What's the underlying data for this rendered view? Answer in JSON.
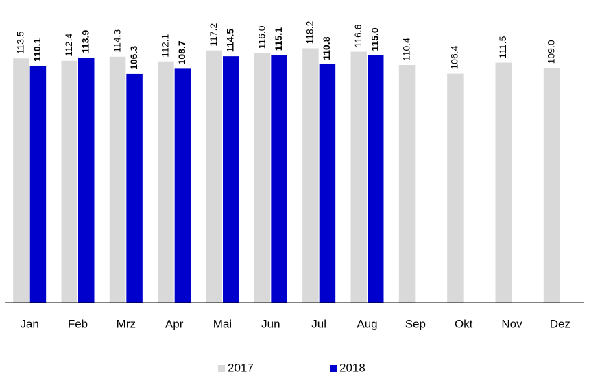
{
  "chart_data": {
    "type": "bar",
    "categories": [
      "Jan",
      "Feb",
      "Mrz",
      "Apr",
      "Mai",
      "Jun",
      "Jul",
      "Aug",
      "Sep",
      "Okt",
      "Nov",
      "Dez"
    ],
    "series": [
      {
        "name": "2017",
        "color": "#d9d9d9",
        "values": [
          113.5,
          112.4,
          114.3,
          112.1,
          117.2,
          116.0,
          118.2,
          116.6,
          110.4,
          106.4,
          111.5,
          109.0
        ],
        "value_labels": [
          "113.5",
          "112.4",
          "114.3",
          "112.1",
          "117.2",
          "116.0",
          "118.2",
          "116.6",
          "110.4",
          "106.4",
          "111.5",
          "109.0"
        ]
      },
      {
        "name": "2018",
        "color": "#0000cc",
        "values": [
          110.1,
          113.9,
          106.3,
          108.7,
          114.5,
          115.1,
          110.8,
          115.0,
          null,
          null,
          null,
          null
        ],
        "value_labels": [
          "110.1",
          "113.9",
          "106.3",
          "108.7",
          "114.5",
          "115.1",
          "110.8",
          "115.0",
          null,
          null,
          null,
          null
        ]
      }
    ],
    "ylim": [
      0,
      140
    ],
    "legend": "bottom"
  }
}
